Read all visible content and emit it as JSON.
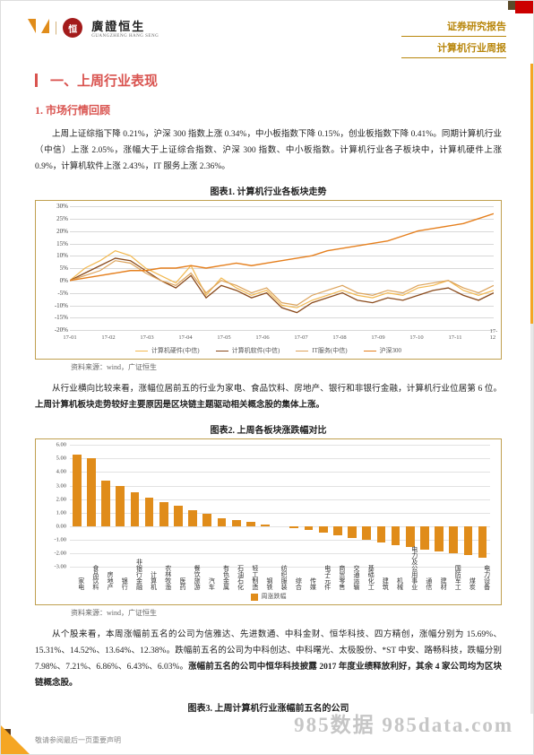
{
  "header": {
    "logo_cn": "廣證恒生",
    "logo_en": "GUANGZHENG HANG SENG",
    "right1": "证券研究报告",
    "right2": "计算机行业周报"
  },
  "headings": {
    "h1_num": "一、",
    "h1": "上周行业表现",
    "h2": "1.  市场行情回顾"
  },
  "para1": "上周上证综指下降 0.21%，沪深 300 指数上涨 0.34%，中小板指数下降 0.15%，创业板指数下降 0.41%。同期计算机行业（中信）上涨 2.05%，涨幅大于上证综合指数、沪深 300 指数、中小板指数。计算机行业各子板块中，计算机硬件上涨 0.9%，计算机软件上涨 2.43%，IT 服务上涨 2.36%。",
  "fig1": {
    "title": "图表1.    计算机行业各板块走势",
    "ytick_labels": [
      "30%",
      "25%",
      "20%",
      "15%",
      "10%",
      "5%",
      "0%",
      "-5%",
      "-10%",
      "-15%",
      "-20%"
    ],
    "ymin": -20,
    "ymax": 30,
    "x_labels": [
      "17-01",
      "17-02",
      "17-03",
      "17-04",
      "17-05",
      "17-06",
      "17-07",
      "17-08",
      "17-09",
      "17-10",
      "17-11",
      "17-12"
    ],
    "series": [
      {
        "name": "计算机硬件(中信)",
        "color": "#f2b84f",
        "width": 1.2,
        "pts": [
          0,
          5,
          8,
          12,
          10,
          5,
          2,
          -1,
          6,
          -6,
          1,
          -3,
          -6,
          -4,
          -10,
          -11,
          -8,
          -6,
          -4,
          -6,
          -7,
          -5,
          -6,
          -3,
          -2,
          0,
          -4,
          -6,
          -4
        ]
      },
      {
        "name": "计算机软件(中信)",
        "color": "#8a4a1b",
        "width": 1.3,
        "pts": [
          0,
          3,
          6,
          9,
          8,
          4,
          0,
          -3,
          2,
          -7,
          -2,
          -4,
          -7,
          -5,
          -11,
          -13,
          -9,
          -7,
          -5,
          -8,
          -9,
          -7,
          -8,
          -6,
          -4,
          -3,
          -6,
          -8,
          -5
        ]
      },
      {
        "name": "IT服务(中信)",
        "color": "#dca35b",
        "width": 1.2,
        "pts": [
          0,
          2,
          4,
          8,
          7,
          3,
          0,
          -2,
          3,
          -5,
          0,
          -2,
          -5,
          -3,
          -9,
          -10,
          -6,
          -4,
          -2,
          -5,
          -6,
          -4,
          -5,
          -2,
          -1,
          0,
          -3,
          -5,
          -2
        ]
      },
      {
        "name": "沪深300",
        "color": "#e57f1d",
        "width": 1.4,
        "pts": [
          0,
          1,
          2,
          3,
          4,
          4,
          5,
          5,
          6,
          5,
          6,
          7,
          6,
          7,
          8,
          9,
          10,
          12,
          13,
          14,
          15,
          16,
          18,
          20,
          21,
          22,
          23,
          25,
          27
        ]
      }
    ],
    "source": "资料来源：wind，广证恒生"
  },
  "para2_a": "从行业横向比较来看，涨幅位居前五的行业为家电、食品饮料、房地产、银行和非银行金融，计算机行业位居第 6 位。",
  "para2_b": "上周计算机板块走势较好主要原因是区块链主题驱动相关概念股的集体上涨。",
  "fig2": {
    "title": "图表2.    上周各板块涨跌幅对比",
    "yticks": [
      6,
      5,
      4,
      3,
      2,
      1,
      0,
      -1,
      -2,
      -3
    ],
    "ymin": -3,
    "ymax": 6,
    "categories": [
      "家电",
      "食品饮料",
      "房地产",
      "银行",
      "非银行金融",
      "计算机",
      "农林牧渔",
      "医药",
      "餐饮旅游",
      "汽车",
      "有色金属",
      "石油石化",
      "轻工制造",
      "钢铁",
      "纺织服装",
      "综合",
      "传媒",
      "电子元件",
      "商贸零售",
      "交通运输",
      "基础化工",
      "建筑",
      "机械",
      "电力及公用事业",
      "通信",
      "建材",
      "国防军工",
      "煤炭",
      "电力设备"
    ],
    "values": [
      5.3,
      5.0,
      3.4,
      3.0,
      2.5,
      2.1,
      1.8,
      1.5,
      1.2,
      0.9,
      0.6,
      0.45,
      0.3,
      0.15,
      0.0,
      -0.15,
      -0.3,
      -0.5,
      -0.7,
      -0.9,
      -1.0,
      -1.2,
      -1.4,
      -1.55,
      -1.7,
      -1.85,
      -2.0,
      -2.15,
      -2.3
    ],
    "bar_color": "#e08c1a",
    "legend": "周涨跌幅",
    "source": "资料来源：wind，广证恒生"
  },
  "para3_a": "从个股来看，本周涨幅前五名的公司为信雅达、先进数通、中科金财、恒华科技、四方精创，涨幅分别为 15.69%、15.31%、14.52%、13.64%、12.38%。跌幅前五名的公司为中科创达、中科曙光、太极股份、*ST 中安、路畅科技，跌幅分别 7.98%、7.21%、6.86%、6.43%、6.03%。",
  "para3_b": "涨幅前五名的公司中恒华科技披露 2017 年度业绩释放利好，其余 4 家公司均为区块链概念股。",
  "fig3": {
    "title": "图表3.    上周计算机行业涨幅前五名的公司"
  },
  "footer": "敬请参阅最后一页重要声明",
  "watermark": "985数据  985data.com"
}
